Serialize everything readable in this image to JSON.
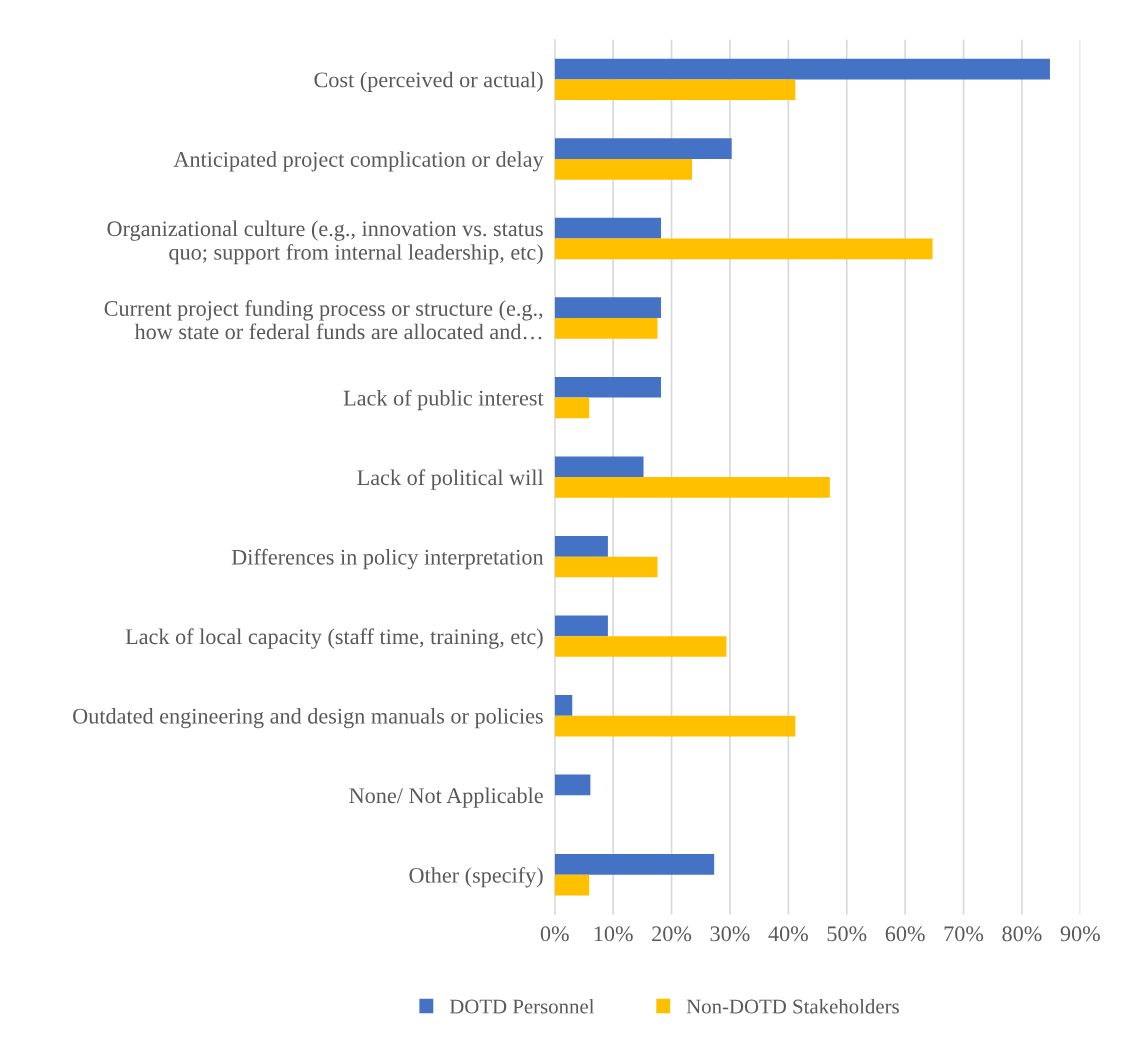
{
  "chart_data": {
    "type": "bar",
    "orientation": "horizontal",
    "categories": [
      "Cost (perceived or actual)",
      "Anticipated project complication or delay",
      "Organizational culture (e.g., innovation vs. status\nquo; support from internal leadership, etc)",
      "Current project funding process or structure (e.g.,\nhow state or federal funds are allocated and…",
      "Lack of public interest",
      "Lack of political will",
      "Differences in policy interpretation",
      "Lack of local capacity (staff time, training, etc)",
      "Outdated engineering and design manuals or policies",
      "None/ Not Applicable",
      "Other (specify)"
    ],
    "series": [
      {
        "name": "DOTD Personnel",
        "color": "#4472c4",
        "values": [
          84.8,
          30.3,
          18.2,
          18.2,
          18.2,
          15.2,
          9.1,
          9.1,
          3.0,
          6.1,
          27.3
        ]
      },
      {
        "name": "Non-DOTD Stakeholders",
        "color": "#ffc000",
        "values": [
          41.2,
          23.5,
          64.7,
          17.6,
          5.9,
          47.1,
          17.6,
          29.4,
          41.2,
          0,
          5.9
        ]
      }
    ],
    "xlim": [
      0,
      90
    ],
    "xticks": [
      {
        "value": 0,
        "label": "0%"
      },
      {
        "value": 10,
        "label": "10%"
      },
      {
        "value": 20,
        "label": "20%"
      },
      {
        "value": 30,
        "label": "30%"
      },
      {
        "value": 40,
        "label": "40%"
      },
      {
        "value": 50,
        "label": "50%"
      },
      {
        "value": 60,
        "label": "60%"
      },
      {
        "value": 70,
        "label": "70%"
      },
      {
        "value": 80,
        "label": "80%"
      },
      {
        "value": 90,
        "label": "90%"
      }
    ],
    "grid": "x",
    "legend": "bottom"
  }
}
